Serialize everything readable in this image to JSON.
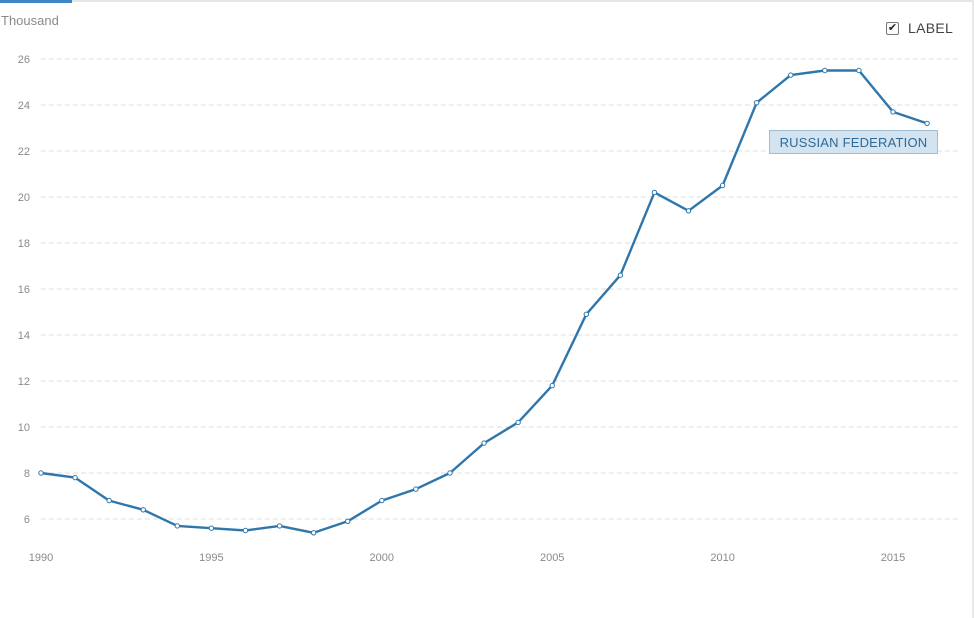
{
  "ui": {
    "unit_label": "Thousand",
    "label_toggle": {
      "text": "LABEL",
      "checked": true,
      "check_glyph": "✔"
    }
  },
  "chart_data": {
    "type": "line",
    "ylabel": "Thousand",
    "ylim": [
      5,
      27
    ],
    "yticks": [
      6,
      8,
      10,
      12,
      14,
      16,
      18,
      20,
      22,
      24,
      26
    ],
    "xlim": [
      1990,
      2016
    ],
    "xticks": [
      1990,
      1995,
      2000,
      2005,
      2010,
      2015
    ],
    "grid": true,
    "series": [
      {
        "name": "RUSSIAN FEDERATION",
        "color": "#2e76ab",
        "x": [
          1990,
          1991,
          1992,
          1993,
          1994,
          1995,
          1996,
          1997,
          1998,
          1999,
          2000,
          2001,
          2002,
          2003,
          2004,
          2005,
          2006,
          2007,
          2008,
          2009,
          2010,
          2011,
          2012,
          2013,
          2014,
          2015,
          2016
        ],
        "y": [
          8.0,
          7.8,
          6.8,
          6.4,
          5.7,
          5.6,
          5.5,
          5.7,
          5.4,
          5.9,
          6.8,
          7.3,
          8.0,
          9.3,
          10.2,
          11.8,
          14.9,
          16.6,
          20.2,
          19.4,
          20.5,
          24.1,
          25.3,
          25.5,
          25.5,
          23.7,
          23.2
        ]
      }
    ]
  }
}
